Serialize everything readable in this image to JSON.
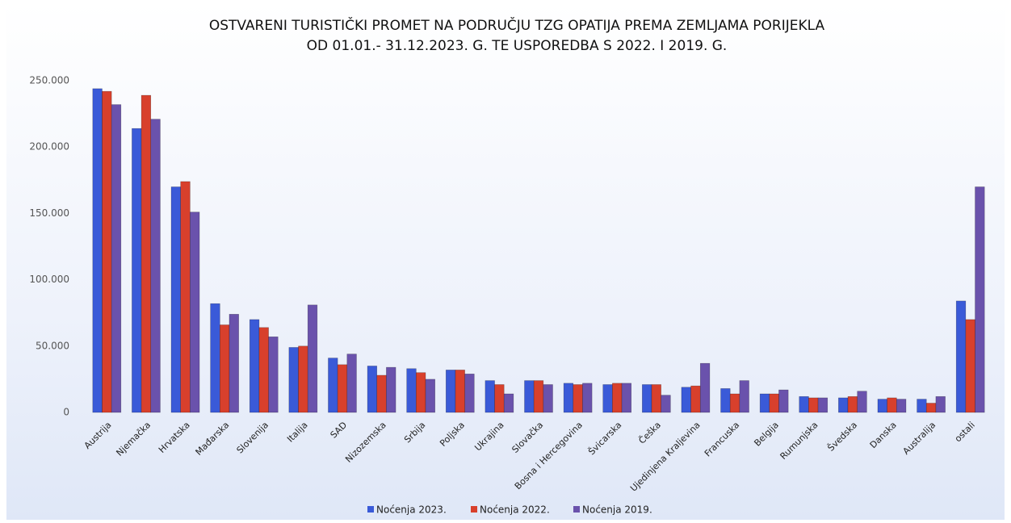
{
  "chart_data": {
    "type": "bar",
    "title": [
      "OSTVARENI TURISTIČKI PROMET NA PODRUČJU TZG OPATIJA PREMA ZEMLJAMA PORIJEKLA",
      "OD 01.01.- 31.12.2023. G. TE USPOREDBA S 2022. I 2019. G."
    ],
    "categories": [
      "Austrija",
      "Njemačka",
      "Hrvatska",
      "Mađarska",
      "Slovenija",
      "Italija",
      "SAD",
      "Nizozemska",
      "Srbija",
      "Poljska",
      "Ukrajina",
      "Slovačka",
      "Bosna i Hercegovina",
      "Švicarska",
      "Češka",
      "Ujedinjena Kraljevina",
      "Francuska",
      "Belgija",
      "Rumunjska",
      "Švedska",
      "Danska",
      "Australija",
      "ostali"
    ],
    "series": [
      {
        "name": "Noćenja 2023.",
        "color": "#3a5ad8",
        "values": [
          244000,
          214000,
          170000,
          82000,
          70000,
          49000,
          41000,
          35000,
          33000,
          32000,
          24000,
          24000,
          22000,
          21000,
          21000,
          19000,
          18000,
          14000,
          12000,
          11000,
          10000,
          10000,
          84000
        ]
      },
      {
        "name": "Noćenja 2022.",
        "color": "#d8402c",
        "values": [
          242000,
          239000,
          174000,
          66000,
          64000,
          50000,
          36000,
          28000,
          30000,
          32000,
          21000,
          24000,
          21000,
          22000,
          21000,
          20000,
          14000,
          14000,
          11000,
          12000,
          11000,
          7000,
          70000
        ]
      },
      {
        "name": "Noćenja 2019.",
        "color": "#6a52ac",
        "values": [
          232000,
          221000,
          151000,
          74000,
          57000,
          81000,
          44000,
          34000,
          25000,
          29000,
          14000,
          21000,
          22000,
          22000,
          13000,
          37000,
          24000,
          17000,
          11000,
          16000,
          10000,
          12000,
          170000
        ]
      }
    ],
    "ylim": [
      0,
      250000
    ],
    "yticks": [
      {
        "value": 0,
        "label": "0"
      },
      {
        "value": 50000,
        "label": "50.000"
      },
      {
        "value": 100000,
        "label": "100.000"
      },
      {
        "value": 150000,
        "label": "150.000"
      },
      {
        "value": 200000,
        "label": "200.000"
      },
      {
        "value": 250000,
        "label": "250.000"
      }
    ],
    "grid": false,
    "legend": "bottom"
  }
}
